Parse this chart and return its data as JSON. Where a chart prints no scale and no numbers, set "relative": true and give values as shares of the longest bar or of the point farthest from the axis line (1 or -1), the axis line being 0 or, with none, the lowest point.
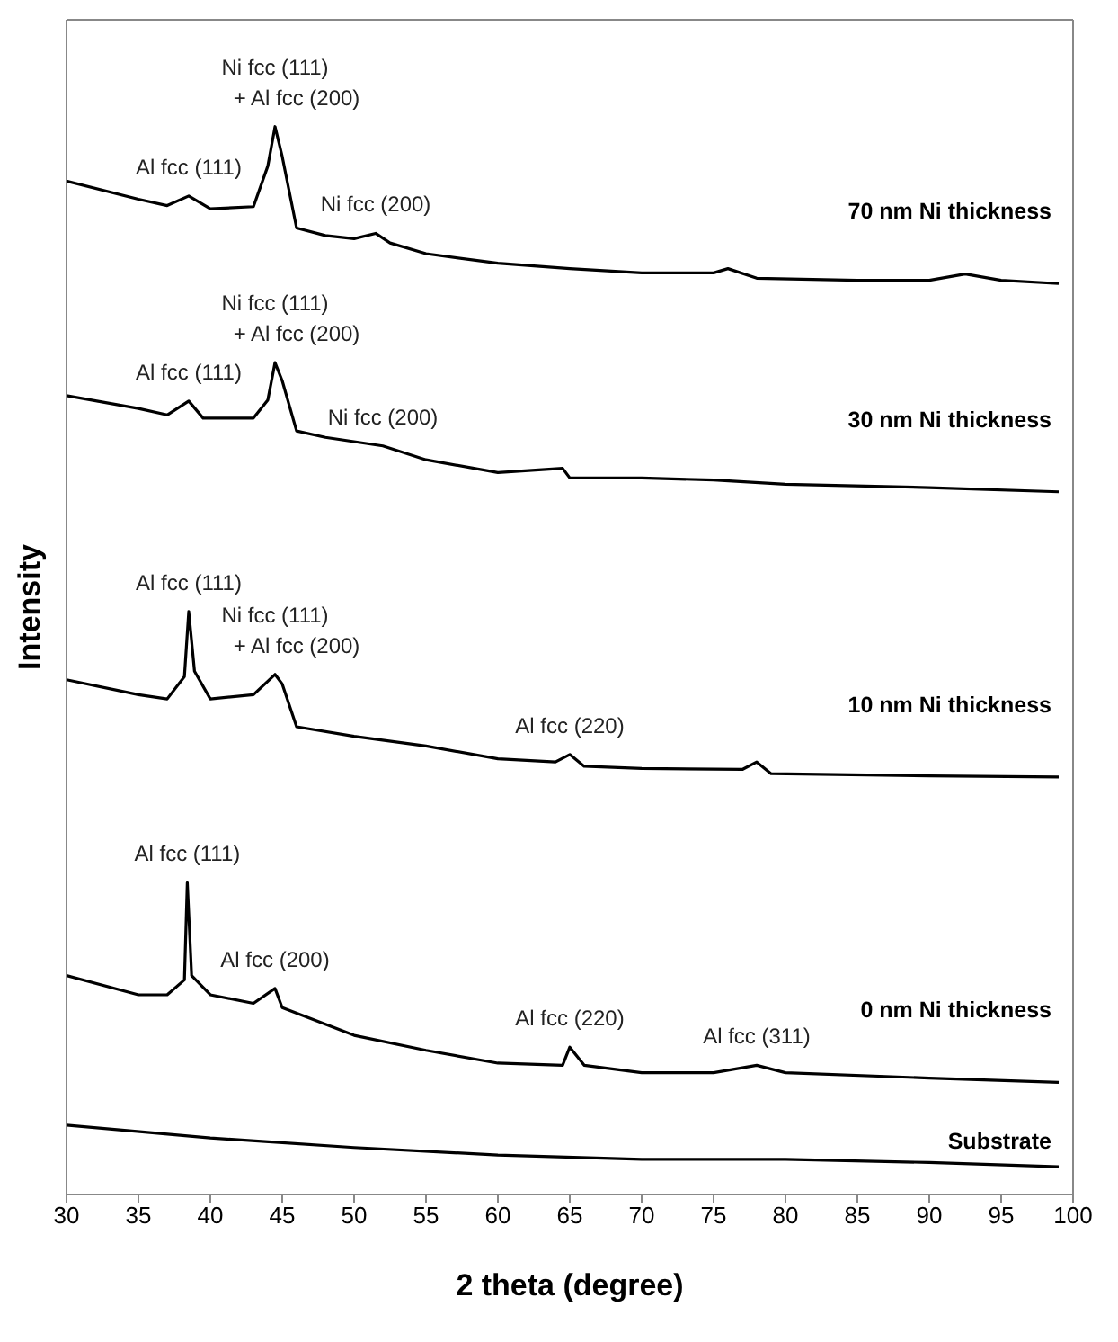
{
  "chart_data": {
    "type": "line",
    "xlabel": "2 theta (degree)",
    "ylabel": "Intensity",
    "relative": true,
    "xlim": [
      30,
      100
    ],
    "xticks": [
      30,
      35,
      40,
      45,
      50,
      55,
      60,
      65,
      70,
      75,
      80,
      85,
      90,
      95,
      100
    ],
    "grid": false,
    "legend": false,
    "marker": "none",
    "line_style": "solid",
    "series": [
      {
        "name": "70 nm Ni thickness",
        "color": "#000000",
        "x": [
          30,
          35,
          37,
          38.5,
          40,
          43,
          44,
          44.5,
          45,
          46,
          48,
          50,
          51.5,
          52.5,
          55,
          60,
          65,
          70,
          75,
          76,
          78,
          85,
          90,
          92.5,
          95,
          99
        ],
        "values": [
          0.949,
          0.932,
          0.926,
          0.935,
          0.923,
          0.925,
          0.963,
          1,
          0.972,
          0.905,
          0.898,
          0.895,
          0.9,
          0.891,
          0.881,
          0.872,
          0.867,
          0.863,
          0.863,
          0.867,
          0.858,
          0.856,
          0.856,
          0.862,
          0.856,
          0.853
        ]
      },
      {
        "name": "30 nm Ni thickness",
        "color": "#000000",
        "x": [
          30,
          35,
          37,
          38.5,
          39.5,
          43,
          44,
          44.5,
          45,
          46,
          48,
          52,
          55,
          60,
          64.5,
          65,
          70,
          75,
          80,
          90,
          99
        ],
        "values": [
          0.748,
          0.736,
          0.73,
          0.743,
          0.727,
          0.727,
          0.744,
          0.779,
          0.762,
          0.715,
          0.709,
          0.701,
          0.688,
          0.676,
          0.68,
          0.671,
          0.671,
          0.669,
          0.665,
          0.662,
          0.658
        ]
      },
      {
        "name": "10 nm Ni thickness",
        "color": "#000000",
        "x": [
          30,
          35,
          37,
          38.2,
          38.5,
          38.9,
          40,
          43,
          44.5,
          45,
          46,
          50,
          55,
          60,
          64,
          65,
          66,
          70,
          77,
          78,
          79,
          90,
          99
        ],
        "values": [
          0.482,
          0.468,
          0.464,
          0.485,
          0.546,
          0.49,
          0.464,
          0.468,
          0.487,
          0.478,
          0.438,
          0.429,
          0.42,
          0.408,
          0.405,
          0.412,
          0.401,
          0.399,
          0.398,
          0.405,
          0.394,
          0.392,
          0.391
        ]
      },
      {
        "name": "0 nm Ni thickness",
        "color": "#000000",
        "x": [
          30,
          35,
          37,
          38.2,
          38.4,
          38.7,
          40,
          43,
          44.5,
          45,
          50,
          55,
          60,
          64.5,
          65,
          66,
          70,
          75,
          78,
          80,
          90,
          99
        ],
        "values": [
          0.205,
          0.187,
          0.187,
          0.201,
          0.292,
          0.205,
          0.187,
          0.179,
          0.193,
          0.175,
          0.149,
          0.135,
          0.123,
          0.121,
          0.138,
          0.121,
          0.114,
          0.114,
          0.121,
          0.114,
          0.109,
          0.105
        ]
      },
      {
        "name": "Substrate",
        "color": "#000000",
        "x": [
          30,
          40,
          50,
          60,
          70,
          80,
          90,
          99
        ],
        "values": [
          0.065,
          0.053,
          0.044,
          0.037,
          0.033,
          0.033,
          0.03,
          0.026
        ]
      }
    ],
    "annotations": [
      {
        "text": "Ni fcc (111)\n+ Al fcc (200)",
        "x": 44.5,
        "y": 1
      },
      {
        "text": "Al fcc (111)",
        "x": 38.5,
        "y": 0.935
      },
      {
        "text": "Ni fcc (200)",
        "x": 51.5,
        "y": 0.9
      },
      {
        "text": "Ni fcc (111)\n+ Al fcc (200)",
        "x": 44.5,
        "y": 0.779
      },
      {
        "text": "Al fcc (111)",
        "x": 38.5,
        "y": 0.743
      },
      {
        "text": "Ni fcc (200)",
        "x": 52,
        "y": 0.701
      },
      {
        "text": "Al fcc (111)",
        "x": 38.5,
        "y": 0.546
      },
      {
        "text": "Ni fcc (111)\n+ Al fcc (200)",
        "x": 44.5,
        "y": 0.487
      },
      {
        "text": "Al fcc (220)",
        "x": 65,
        "y": 0.412
      },
      {
        "text": "Al fcc (111)",
        "x": 38.4,
        "y": 0.292
      },
      {
        "text": "Al fcc (200)",
        "x": 44.5,
        "y": 0.193
      },
      {
        "text": "Al fcc (220)",
        "x": 65,
        "y": 0.138
      },
      {
        "text": "Al fcc (311)",
        "x": 78,
        "y": 0.121
      }
    ]
  }
}
